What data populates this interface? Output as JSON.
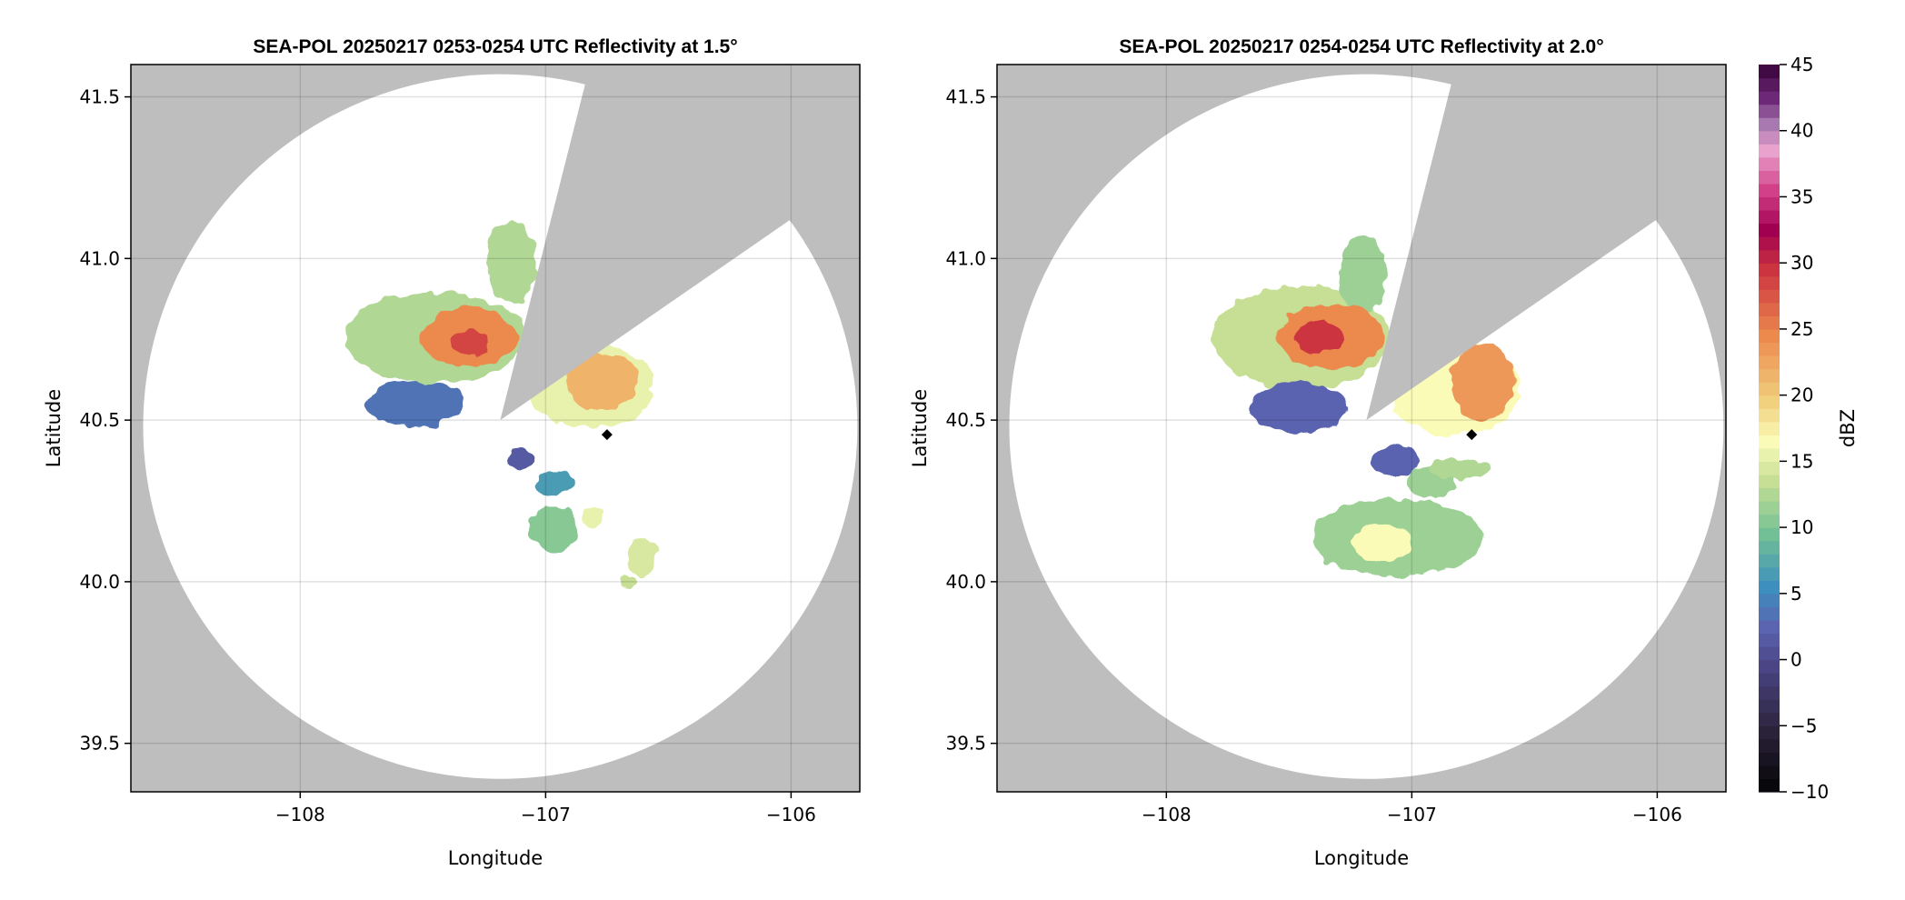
{
  "chart_data": [
    {
      "type": "heatmap",
      "title": "SEA-POL 20250217 0253-0254 UTC Reflectivity at 1.5°",
      "xlabel": "Longitude",
      "ylabel": "Latitude",
      "xlim": [
        -108.69,
        -105.72
      ],
      "ylim": [
        39.35,
        41.6
      ],
      "xticks": [
        -108,
        -107,
        -106
      ],
      "xtick_labels": [
        "−108",
        "−107",
        "−106"
      ],
      "yticks": [
        39.5,
        40.0,
        40.5,
        41.0,
        41.5
      ],
      "ytick_labels": [
        "39.5",
        "40.0",
        "40.5",
        "41.0",
        "41.5"
      ],
      "grid": true,
      "radar": {
        "center_lon": -107.185,
        "center_lat": 40.48,
        "range_lon_deg": 1.455,
        "range_lat_deg": 1.09,
        "blocked_sector_azimuth_deg": [
          14,
          55
        ]
      },
      "marker": {
        "lon": -106.75,
        "lat": 40.455
      },
      "echoes": [
        {
          "lon": -107.45,
          "lat": 40.756,
          "rx_deg": 0.37,
          "ry_deg": 0.14,
          "dbz": 13
        },
        {
          "lon": -107.14,
          "lat": 40.99,
          "rx_deg": 0.1,
          "ry_deg": 0.13,
          "dbz": 13
        },
        {
          "lon": -107.53,
          "lat": 40.55,
          "rx_deg": 0.2,
          "ry_deg": 0.07,
          "dbz": 4
        },
        {
          "lon": -107.31,
          "lat": 40.756,
          "rx_deg": 0.2,
          "ry_deg": 0.09,
          "dbz": 25
        },
        {
          "lon": -107.31,
          "lat": 40.74,
          "rx_deg": 0.08,
          "ry_deg": 0.04,
          "dbz": 29
        },
        {
          "lon": -106.82,
          "lat": 40.607,
          "rx_deg": 0.26,
          "ry_deg": 0.13,
          "dbz": 16
        },
        {
          "lon": -106.77,
          "lat": 40.62,
          "rx_deg": 0.15,
          "ry_deg": 0.09,
          "dbz": 22
        },
        {
          "lon": -107.1,
          "lat": 40.38,
          "rx_deg": 0.05,
          "ry_deg": 0.03,
          "dbz": 2
        },
        {
          "lon": -106.96,
          "lat": 40.306,
          "rx_deg": 0.08,
          "ry_deg": 0.04,
          "dbz": 7
        },
        {
          "lon": -106.97,
          "lat": 40.165,
          "rx_deg": 0.1,
          "ry_deg": 0.07,
          "dbz": 11
        },
        {
          "lon": -106.81,
          "lat": 40.2,
          "rx_deg": 0.04,
          "ry_deg": 0.03,
          "dbz": 16
        },
        {
          "lon": -106.61,
          "lat": 40.08,
          "rx_deg": 0.06,
          "ry_deg": 0.06,
          "dbz": 15
        },
        {
          "lon": -106.67,
          "lat": 40.0,
          "rx_deg": 0.03,
          "ry_deg": 0.02,
          "dbz": 14
        }
      ]
    },
    {
      "type": "heatmap",
      "title": "SEA-POL 20250217 0254-0254 UTC Reflectivity at 2.0°",
      "xlabel": "Longitude",
      "ylabel": "Latitude",
      "xlim": [
        -108.69,
        -105.72
      ],
      "ylim": [
        39.35,
        41.6
      ],
      "xticks": [
        -108,
        -107,
        -106
      ],
      "xtick_labels": [
        "−108",
        "−107",
        "−106"
      ],
      "yticks": [
        39.5,
        40.0,
        40.5,
        41.0,
        41.5
      ],
      "ytick_labels": [
        "39.5",
        "40.0",
        "40.5",
        "41.0",
        "41.5"
      ],
      "grid": true,
      "radar": {
        "center_lon": -107.185,
        "center_lat": 40.48,
        "range_lon_deg": 1.455,
        "range_lat_deg": 1.09,
        "blocked_sector_azimuth_deg": [
          14,
          55
        ]
      },
      "marker": {
        "lon": -106.756,
        "lat": 40.455
      },
      "echoes": [
        {
          "lon": -107.45,
          "lat": 40.756,
          "rx_deg": 0.36,
          "ry_deg": 0.16,
          "dbz": 14
        },
        {
          "lon": -107.2,
          "lat": 40.95,
          "rx_deg": 0.1,
          "ry_deg": 0.12,
          "dbz": 12
        },
        {
          "lon": -107.46,
          "lat": 40.54,
          "rx_deg": 0.2,
          "ry_deg": 0.08,
          "dbz": 3
        },
        {
          "lon": -107.33,
          "lat": 40.756,
          "rx_deg": 0.22,
          "ry_deg": 0.1,
          "dbz": 25
        },
        {
          "lon": -107.38,
          "lat": 40.756,
          "rx_deg": 0.1,
          "ry_deg": 0.05,
          "dbz": 30
        },
        {
          "lon": -106.83,
          "lat": 40.6,
          "rx_deg": 0.27,
          "ry_deg": 0.15,
          "dbz": 17
        },
        {
          "lon": -106.71,
          "lat": 40.62,
          "rx_deg": 0.13,
          "ry_deg": 0.12,
          "dbz": 24
        },
        {
          "lon": -107.07,
          "lat": 40.37,
          "rx_deg": 0.1,
          "ry_deg": 0.05,
          "dbz": 3
        },
        {
          "lon": -106.92,
          "lat": 40.306,
          "rx_deg": 0.1,
          "ry_deg": 0.05,
          "dbz": 12
        },
        {
          "lon": -106.81,
          "lat": 40.35,
          "rx_deg": 0.13,
          "ry_deg": 0.03,
          "dbz": 13
        },
        {
          "lon": -107.06,
          "lat": 40.137,
          "rx_deg": 0.35,
          "ry_deg": 0.12,
          "dbz": 12
        },
        {
          "lon": -107.12,
          "lat": 40.12,
          "rx_deg": 0.12,
          "ry_deg": 0.06,
          "dbz": 17
        }
      ]
    }
  ],
  "colorbar": {
    "label": "dBZ",
    "range": [
      -10,
      45
    ],
    "ticks": [
      -10,
      -5,
      0,
      5,
      10,
      15,
      20,
      25,
      30,
      35,
      40,
      45
    ],
    "tick_labels": [
      "−10",
      "−5",
      "0",
      "5",
      "10",
      "15",
      "20",
      "25",
      "30",
      "35",
      "40",
      "45"
    ],
    "colors": [
      {
        "value": -10,
        "color": "#000000"
      },
      {
        "value": -5,
        "color": "#2a2238"
      },
      {
        "value": 0,
        "color": "#4b4585"
      },
      {
        "value": 3,
        "color": "#5a64b0"
      },
      {
        "value": 6,
        "color": "#3d90be"
      },
      {
        "value": 10,
        "color": "#72c095"
      },
      {
        "value": 14,
        "color": "#c6df94"
      },
      {
        "value": 17,
        "color": "#fbfbb8"
      },
      {
        "value": 20,
        "color": "#f1d07e"
      },
      {
        "value": 25,
        "color": "#ec8a4e"
      },
      {
        "value": 30,
        "color": "#cc3440"
      },
      {
        "value": 33,
        "color": "#a0004f"
      },
      {
        "value": 36,
        "color": "#d3408a"
      },
      {
        "value": 39,
        "color": "#e8a2cc"
      },
      {
        "value": 41,
        "color": "#a878b0"
      },
      {
        "value": 43,
        "color": "#6e2878"
      },
      {
        "value": 45,
        "color": "#420a45"
      }
    ]
  },
  "colors": {
    "outside_range": "#bebebe",
    "inside_range": "#ffffff",
    "grid": "#000000",
    "marker": "#000000"
  }
}
